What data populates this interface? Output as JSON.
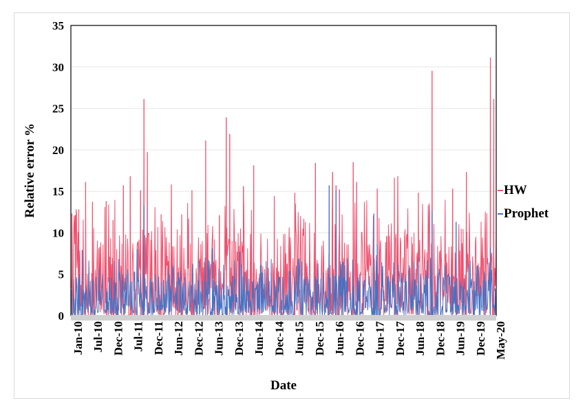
{
  "chart_data": {
    "type": "line",
    "title": "",
    "xlabel": "Date",
    "ylabel": "Relative error %",
    "ylim": [
      0,
      35
    ],
    "yticks": [
      0,
      5,
      10,
      15,
      20,
      25,
      30,
      35
    ],
    "xticks": [
      "Jan-10",
      "Jul-10",
      "Dec-10",
      "Jul-11",
      "Dec-11",
      "Jun-12",
      "Dec-12",
      "Jun-13",
      "Dec-13",
      "Jun-14",
      "Dec-14",
      "Jun-15",
      "Dec-15",
      "Jun-16",
      "Dec-16",
      "Jun-17",
      "Dec-17",
      "Jun-18",
      "Dec-18",
      "Jun-19",
      "Dec-19",
      "May-20"
    ],
    "x_range": [
      "2010-01",
      "2020-05"
    ],
    "legend_position": "right",
    "series": [
      {
        "name": "HW",
        "color": "#f0506e",
        "peaks": [
          {
            "date": "2010-01",
            "value": 12.3
          },
          {
            "date": "2010-02",
            "value": 12.1
          },
          {
            "date": "2010-03",
            "value": 12.8
          },
          {
            "date": "2010-05",
            "value": 16.1
          },
          {
            "date": "2010-07",
            "value": 13.7
          },
          {
            "date": "2010-11",
            "value": 13.8
          },
          {
            "date": "2011-01",
            "value": 11.5
          },
          {
            "date": "2011-04",
            "value": 15.7
          },
          {
            "date": "2011-06",
            "value": 16.8
          },
          {
            "date": "2011-09",
            "value": 15.1
          },
          {
            "date": "2011-10",
            "value": 26.1
          },
          {
            "date": "2011-11",
            "value": 19.7
          },
          {
            "date": "2012-03",
            "value": 12.2
          },
          {
            "date": "2012-06",
            "value": 15.8
          },
          {
            "date": "2012-09",
            "value": 12.2
          },
          {
            "date": "2012-12",
            "value": 15.1
          },
          {
            "date": "2013-04",
            "value": 21.1
          },
          {
            "date": "2013-08",
            "value": 12.1
          },
          {
            "date": "2013-10",
            "value": 23.9
          },
          {
            "date": "2013-11",
            "value": 21.9
          },
          {
            "date": "2014-03",
            "value": 15.6
          },
          {
            "date": "2014-06",
            "value": 18.1
          },
          {
            "date": "2014-12",
            "value": 14.4
          },
          {
            "date": "2015-06",
            "value": 14.8
          },
          {
            "date": "2015-12",
            "value": 18.4
          },
          {
            "date": "2016-05",
            "value": 17.3
          },
          {
            "date": "2016-06",
            "value": 15.7
          },
          {
            "date": "2016-07",
            "value": 15.2
          },
          {
            "date": "2016-11",
            "value": 18.5
          },
          {
            "date": "2016-12",
            "value": 16.1
          },
          {
            "date": "2017-06",
            "value": 15.3
          },
          {
            "date": "2017-11",
            "value": 16.6
          },
          {
            "date": "2017-12",
            "value": 16.8
          },
          {
            "date": "2018-06",
            "value": 14.8
          },
          {
            "date": "2018-10",
            "value": 29.5
          },
          {
            "date": "2019-04",
            "value": 15.3
          },
          {
            "date": "2019-08",
            "value": 17.3
          },
          {
            "date": "2020-03",
            "value": 31.1
          },
          {
            "date": "2020-04",
            "value": 26.1
          }
        ],
        "typical_range": [
          0,
          10
        ]
      },
      {
        "name": "Prophet",
        "color": "#4472c4",
        "peaks": [
          {
            "date": "2010-04",
            "value": 7.9
          },
          {
            "date": "2011-08",
            "value": 8.0
          },
          {
            "date": "2011-10",
            "value": 13.3
          },
          {
            "date": "2013-06",
            "value": 8.1
          },
          {
            "date": "2014-02",
            "value": 7.7
          },
          {
            "date": "2016-04",
            "value": 15.7
          },
          {
            "date": "2016-06",
            "value": 15.1
          },
          {
            "date": "2016-08",
            "value": 6.4
          },
          {
            "date": "2017-05",
            "value": 12.3
          },
          {
            "date": "2017-06",
            "value": 8.6
          },
          {
            "date": "2018-10",
            "value": 12.6
          },
          {
            "date": "2019-05",
            "value": 11.3
          },
          {
            "date": "2020-03",
            "value": 8.2
          }
        ],
        "typical_range": [
          0,
          5
        ]
      }
    ]
  }
}
